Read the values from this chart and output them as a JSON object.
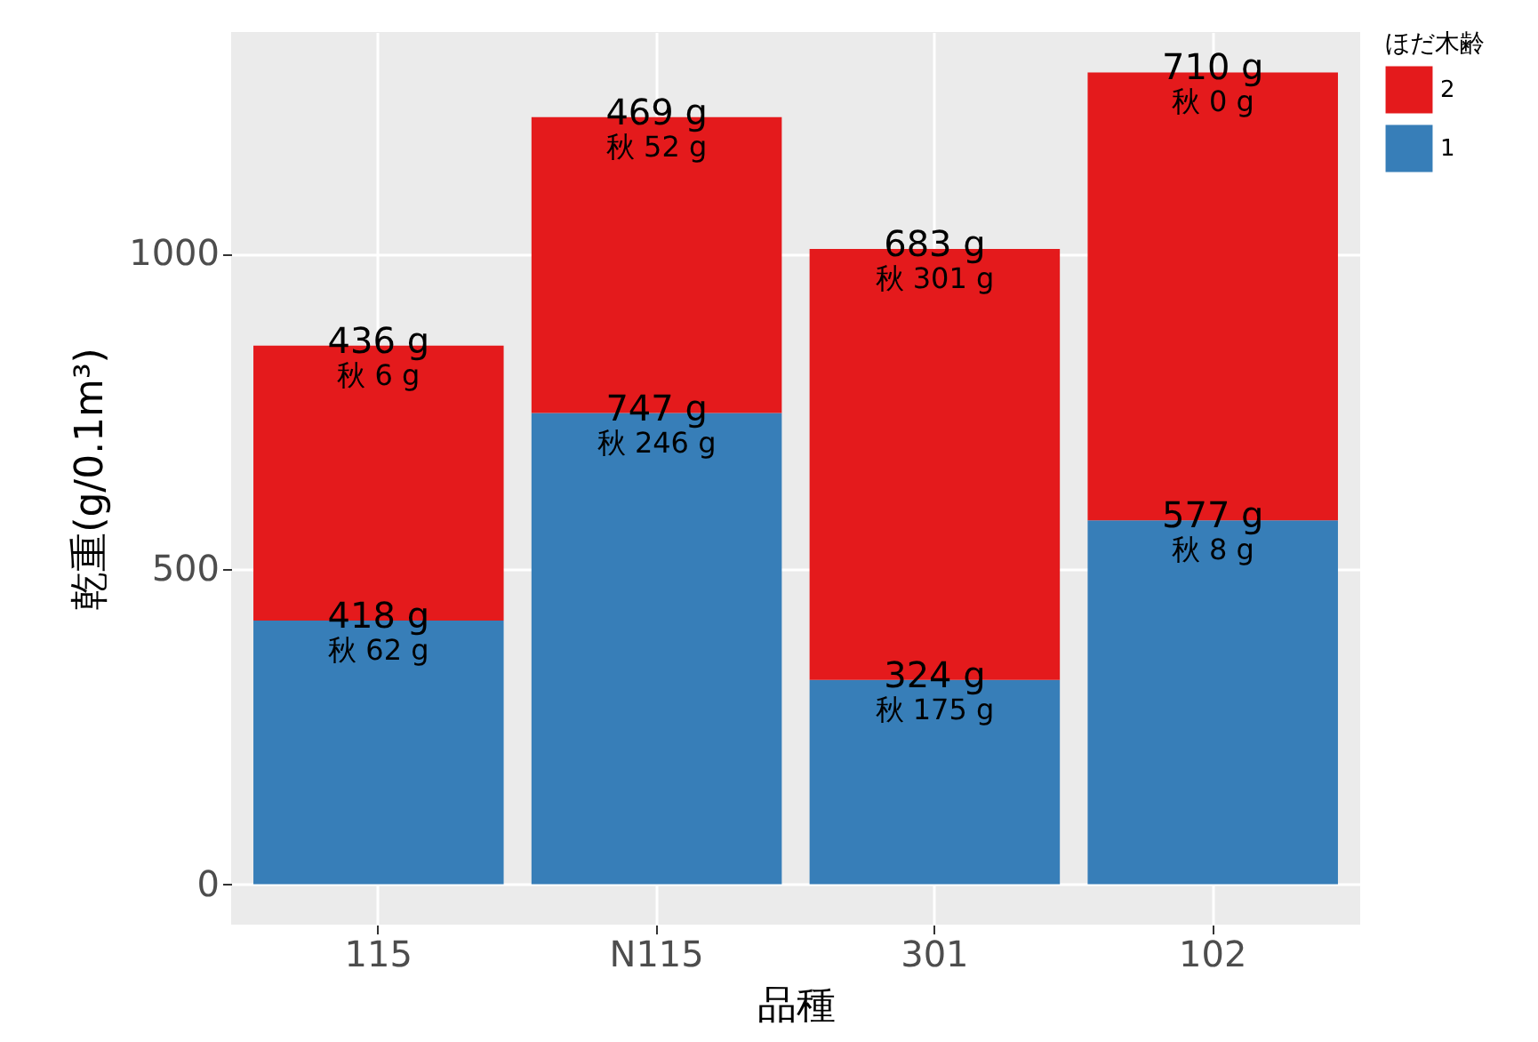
{
  "chart_data": {
    "type": "bar",
    "stacked": true,
    "xlabel": "品種",
    "ylabel": "乾重(g/0.1m³)",
    "legend_title": "ほだ木齢",
    "legend": "right",
    "grid": true,
    "categories": [
      "115",
      "N115",
      "301",
      "102"
    ],
    "series": [
      {
        "name": "1",
        "color": "#377eb8",
        "values": [
          418,
          747,
          324,
          577
        ],
        "value_labels": [
          "418 g",
          "747 g",
          "324 g",
          "577 g"
        ]
      },
      {
        "name": "2",
        "color": "#e41a1c",
        "values": [
          436,
          469,
          683,
          710
        ],
        "value_labels": [
          "436 g",
          "469 g",
          "683 g",
          "710 g"
        ]
      }
    ],
    "annotations": [
      {
        "text": "秋 62 g",
        "x": "115",
        "y": 418
      },
      {
        "text": "秋 246 g",
        "x": "N115",
        "y": 747
      },
      {
        "text": "秋 175 g",
        "x": "301",
        "y": 324
      },
      {
        "text": "秋 8 g",
        "x": "102",
        "y": 577
      },
      {
        "text": "秋 6 g",
        "x": "115",
        "y": 854
      },
      {
        "text": "秋 52 g",
        "x": "N115",
        "y": 1216
      },
      {
        "text": "秋 301 g",
        "x": "301",
        "y": 1007
      },
      {
        "text": "秋 0 g",
        "x": "102",
        "y": 1287
      }
    ],
    "ylim": [
      -64,
      1351
    ],
    "yticks": [
      0,
      500,
      1000
    ]
  }
}
